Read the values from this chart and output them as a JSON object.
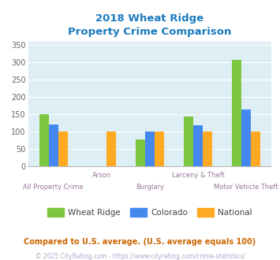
{
  "title_line1": "2018 Wheat Ridge",
  "title_line2": "Property Crime Comparison",
  "title_color": "#1a7abf",
  "categories": [
    "All Property Crime",
    "Arson",
    "Burglary",
    "Larceny & Theft",
    "Motor Vehicle Theft"
  ],
  "wheat_ridge": [
    150,
    0,
    78,
    143,
    307
  ],
  "colorado": [
    120,
    0,
    100,
    118,
    163
  ],
  "national": [
    100,
    100,
    100,
    100,
    100
  ],
  "color_wr": "#7dc63f",
  "color_co": "#4488ee",
  "color_nat": "#ffaa22",
  "ylim": [
    0,
    360
  ],
  "yticks": [
    0,
    50,
    100,
    150,
    200,
    250,
    300,
    350
  ],
  "bg_color": "#ddeef4",
  "xlabel_color": "#997799",
  "footnote1": "Compared to U.S. average. (U.S. average equals 100)",
  "footnote2": "© 2025 CityRating.com - https://www.cityrating.com/crime-statistics/",
  "footnote1_color": "#cc6600",
  "footnote2_color": "#aaaacc",
  "legend_labels": [
    "Wheat Ridge",
    "Colorado",
    "National"
  ]
}
